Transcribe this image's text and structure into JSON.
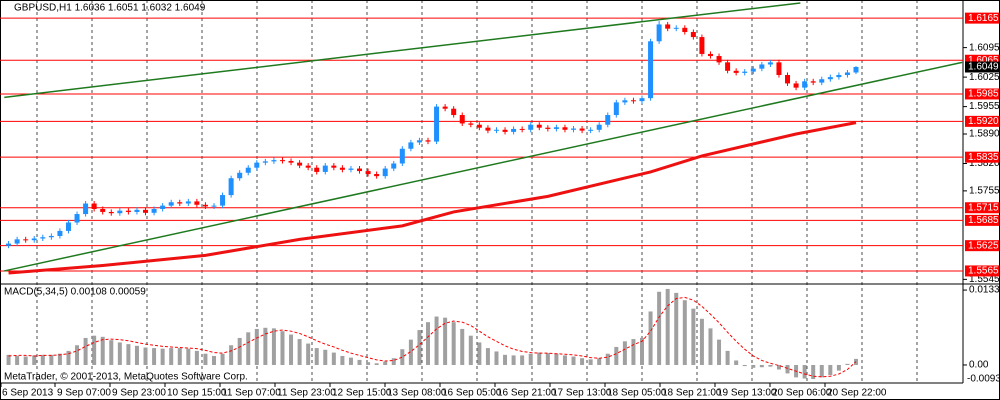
{
  "chart_data": {
    "type": "candlestick",
    "title": "GBPUSD,H1  1.6036 1.6051 1.6032 1.6049",
    "up_color": "#1e90ff",
    "down_color": "#ff0000",
    "xlim": [
      -1,
      111.5
    ],
    "ylim": [
      1.5534,
      1.6208
    ],
    "yticks": [
      1.6095,
      1.6025,
      1.5955,
      {
        "value": 1.589,
        "label": "1.5890"
      },
      {
        "value": 1.582,
        "label": "1.5820"
      },
      1.5755,
      1.5545
    ],
    "open": [
      1.5625,
      1.563,
      1.564,
      1.5638,
      1.5642,
      1.5645,
      1.5648,
      1.566,
      1.568,
      1.57,
      1.5725,
      1.5712,
      1.5705,
      1.5702,
      1.5708,
      1.5705,
      1.571,
      1.5703,
      1.5712,
      1.572,
      1.5728,
      1.5725,
      1.573,
      1.5722,
      1.5718,
      1.572,
      1.5745,
      1.5785,
      1.5798,
      1.581,
      1.5822,
      1.5825,
      1.5828,
      1.5826,
      1.5822,
      1.5815,
      1.581,
      1.58,
      1.5815,
      1.581,
      1.5805,
      1.5808,
      1.5802,
      1.5795,
      1.579,
      1.5808,
      1.582,
      1.5855,
      1.587,
      1.5875,
      1.5872,
      1.5955,
      1.595,
      1.5935,
      1.5915,
      1.5912,
      1.5905,
      1.5898,
      1.59,
      1.5895,
      1.5902,
      1.59,
      1.5912,
      1.5905,
      1.5902,
      1.5906,
      1.59,
      1.5903,
      1.5898,
      1.59,
      1.5912,
      1.5935,
      1.5965,
      1.597,
      1.5968,
      1.5975,
      1.611,
      1.615,
      1.614,
      1.6142,
      1.6132,
      1.612,
      1.608,
      1.6075,
      1.606,
      1.604,
      1.6035,
      1.6038,
      1.6045,
      1.6055,
      1.606,
      1.603,
      1.601,
      1.6,
      1.6015,
      1.6012,
      1.602,
      1.6025,
      1.603,
      1.6036
    ],
    "high": [
      1.5636,
      1.5646,
      1.5646,
      1.5648,
      1.5651,
      1.5654,
      1.5666,
      1.5686,
      1.5706,
      1.5731,
      1.5731,
      1.5718,
      1.5711,
      1.5714,
      1.5714,
      1.5716,
      1.5716,
      1.5718,
      1.5726,
      1.5734,
      1.5734,
      1.5736,
      1.5736,
      1.5728,
      1.5726,
      1.5751,
      1.5791,
      1.5804,
      1.5816,
      1.5828,
      1.5831,
      1.5834,
      1.5834,
      1.5832,
      1.5828,
      1.5821,
      1.5816,
      1.5821,
      1.5821,
      1.5816,
      1.5814,
      1.5814,
      1.5808,
      1.5801,
      1.5814,
      1.5826,
      1.5861,
      1.5876,
      1.5881,
      1.5881,
      1.5961,
      1.5961,
      1.5956,
      1.5941,
      1.5921,
      1.5918,
      1.5911,
      1.5906,
      1.5906,
      1.5908,
      1.5908,
      1.5918,
      1.5918,
      1.5911,
      1.5912,
      1.5912,
      1.5909,
      1.5909,
      1.5906,
      1.5918,
      1.5941,
      1.5971,
      1.5976,
      1.5976,
      1.5981,
      1.6116,
      1.6158,
      1.6156,
      1.6148,
      1.6148,
      1.6138,
      1.6126,
      1.6086,
      1.6081,
      1.6066,
      1.6046,
      1.6044,
      1.6051,
      1.6061,
      1.6066,
      1.6066,
      1.6036,
      1.6016,
      1.6021,
      1.6021,
      1.6026,
      1.6031,
      1.6036,
      1.6042,
      1.6051
    ],
    "low": [
      1.5619,
      1.5624,
      1.5632,
      1.5632,
      1.5636,
      1.5639,
      1.5642,
      1.5654,
      1.5674,
      1.5694,
      1.5706,
      1.5699,
      1.5696,
      1.5696,
      1.5699,
      1.5699,
      1.5697,
      1.5697,
      1.5706,
      1.5714,
      1.5719,
      1.5719,
      1.5716,
      1.5712,
      1.5712,
      1.5714,
      1.5739,
      1.5779,
      1.5792,
      1.5804,
      1.5816,
      1.5819,
      1.582,
      1.5816,
      1.5809,
      1.5804,
      1.5794,
      1.5794,
      1.5804,
      1.5799,
      1.5799,
      1.5796,
      1.5789,
      1.5784,
      1.5784,
      1.5802,
      1.5814,
      1.5849,
      1.5864,
      1.5866,
      1.5866,
      1.5944,
      1.5929,
      1.5909,
      1.5906,
      1.5899,
      1.5892,
      1.5892,
      1.5889,
      1.5889,
      1.5894,
      1.5894,
      1.5899,
      1.5896,
      1.5896,
      1.5894,
      1.5894,
      1.5892,
      1.5892,
      1.5894,
      1.5906,
      1.5929,
      1.5959,
      1.5962,
      1.5962,
      1.5969,
      1.6104,
      1.6134,
      1.6134,
      1.6126,
      1.6114,
      1.6074,
      1.6069,
      1.6054,
      1.6034,
      1.6029,
      1.6029,
      1.6032,
      1.6039,
      1.6049,
      1.6024,
      1.6004,
      1.5994,
      1.5994,
      1.6006,
      1.6006,
      1.6014,
      1.6019,
      1.6024,
      1.6032
    ],
    "close": [
      1.563,
      1.564,
      1.5638,
      1.5642,
      1.5645,
      1.5648,
      1.566,
      1.568,
      1.57,
      1.5725,
      1.5712,
      1.5705,
      1.5702,
      1.5708,
      1.5705,
      1.571,
      1.5703,
      1.5712,
      1.572,
      1.5728,
      1.5725,
      1.573,
      1.5722,
      1.5718,
      1.572,
      1.5745,
      1.5785,
      1.5798,
      1.581,
      1.5822,
      1.5825,
      1.5828,
      1.5826,
      1.5822,
      1.5815,
      1.581,
      1.58,
      1.5815,
      1.581,
      1.5805,
      1.5808,
      1.5802,
      1.5795,
      1.579,
      1.5808,
      1.582,
      1.5855,
      1.587,
      1.5875,
      1.5872,
      1.5955,
      1.595,
      1.5935,
      1.5915,
      1.5912,
      1.5905,
      1.5898,
      1.59,
      1.5895,
      1.5902,
      1.59,
      1.5912,
      1.5905,
      1.5902,
      1.5906,
      1.59,
      1.5903,
      1.5898,
      1.59,
      1.5912,
      1.5935,
      1.5965,
      1.597,
      1.5968,
      1.5975,
      1.611,
      1.615,
      1.614,
      1.6142,
      1.6132,
      1.612,
      1.608,
      1.6075,
      1.606,
      1.604,
      1.6035,
      1.6038,
      1.6045,
      1.6055,
      1.606,
      1.603,
      1.601,
      1.6,
      1.6015,
      1.6012,
      1.602,
      1.6025,
      1.603,
      1.6036,
      1.6049
    ],
    "levels": [
      1.6165,
      1.6065,
      1.5985,
      {
        "value": 1.592,
        "label": "1.5920"
      },
      1.5835,
      1.5715,
      1.5685,
      1.5625,
      1.5565
    ],
    "level_color": "#ff0000",
    "last_price": 1.6049,
    "ma": {
      "color": "#ee1111",
      "x": [
        0,
        11,
        23,
        34,
        46,
        52,
        63,
        75,
        81,
        92,
        99
      ],
      "values": [
        1.556,
        1.5578,
        1.5602,
        1.564,
        1.5672,
        1.5705,
        1.5742,
        1.58,
        1.5838,
        1.589,
        1.5917
      ]
    },
    "trend_color": "#1f7a1f",
    "trendlines": [
      {
        "x": [
          -0.5,
          92.5
        ],
        "y": [
          1.5977,
          1.6201
        ]
      },
      {
        "x": [
          -0.5,
          111.4
        ],
        "y": [
          1.5565,
          1.606
        ]
      }
    ],
    "xlabels": [
      "6 Sep 2013",
      "9 Sep 07:00",
      "9 Sep 23:00",
      "10 Sep 15:00",
      "11 Sep 07:00",
      "11 Sep 23:00",
      "12 Sep 15:00",
      "13 Sep 08:00",
      "16 Sep 05:00",
      "16 Sep 21:00",
      "17 Sep 13:00",
      "18 Sep 05:00",
      "18 Sep 21:00",
      "19 Sep 13:00",
      "20 Sep 06:00",
      "20 Sep 22:00"
    ],
    "copyright": "MetaTrader, © 2001-2013, MetaQuotes Software Corp.",
    "macd": {
      "title": "MACD(5,34,5) 0.00108 0.00059",
      "bar_color": "#a0a0a0",
      "signal_color": "#ff0000",
      "ylim": [
        -0.0032,
        0.0142
      ],
      "yticks": [
        0.0133,
        {
          "value": 0,
          "label": "0.00"
        }
      ],
      "min_label": -0.0093,
      "values": [
        0.0018,
        0.0016,
        0.0015,
        0.0017,
        0.0018,
        0.0018,
        0.002,
        0.0025,
        0.0035,
        0.0048,
        0.0052,
        0.005,
        0.0044,
        0.004,
        0.0037,
        0.0034,
        0.0031,
        0.003,
        0.0029,
        0.003,
        0.003,
        0.0029,
        0.0025,
        0.002,
        0.0016,
        0.002,
        0.0035,
        0.0048,
        0.0058,
        0.0064,
        0.0066,
        0.0065,
        0.006,
        0.0054,
        0.0046,
        0.0038,
        0.003,
        0.0027,
        0.0022,
        0.0016,
        0.0013,
        0.0009,
        0.0005,
        0.0003,
        0.0006,
        0.0012,
        0.0028,
        0.0045,
        0.0062,
        0.0076,
        0.0086,
        0.0084,
        0.0076,
        0.0064,
        0.0052,
        0.004,
        0.003,
        0.0024,
        0.0018,
        0.0017,
        0.0017,
        0.002,
        0.0022,
        0.0021,
        0.002,
        0.0017,
        0.0015,
        0.0012,
        0.001,
        0.0012,
        0.002,
        0.0032,
        0.0042,
        0.0046,
        0.0048,
        0.0095,
        0.013,
        0.0135,
        0.0128,
        0.0115,
        0.01,
        0.0082,
        0.0065,
        0.0045,
        0.0025,
        0.0008,
        -0.0002,
        -0.0005,
        -0.0004,
        -0.0003,
        -0.0008,
        -0.0015,
        -0.0022,
        -0.0024,
        -0.0025,
        -0.0022,
        -0.0018,
        -0.001,
        0.0002,
        0.00108
      ],
      "signal": [
        0.0016,
        0.0017,
        0.0017,
        0.0016,
        0.0017,
        0.0017,
        0.0018,
        0.002,
        0.0025,
        0.0033,
        0.004,
        0.0045,
        0.0046,
        0.0045,
        0.0043,
        0.004,
        0.0037,
        0.0035,
        0.0033,
        0.0032,
        0.0031,
        0.003,
        0.0029,
        0.0026,
        0.0022,
        0.0021,
        0.0025,
        0.0032,
        0.004,
        0.0048,
        0.0055,
        0.006,
        0.0062,
        0.006,
        0.0056,
        0.005,
        0.0043,
        0.0037,
        0.0032,
        0.0026,
        0.0021,
        0.0017,
        0.0013,
        0.0009,
        0.0007,
        0.0008,
        0.0014,
        0.0024,
        0.0036,
        0.005,
        0.0064,
        0.0074,
        0.0078,
        0.0076,
        0.007,
        0.006,
        0.005,
        0.0042,
        0.0034,
        0.0028,
        0.0024,
        0.0022,
        0.0021,
        0.0021,
        0.002,
        0.0019,
        0.0018,
        0.0016,
        0.0013,
        0.0012,
        0.0014,
        0.002,
        0.0028,
        0.0036,
        0.0042,
        0.006,
        0.0085,
        0.0105,
        0.0118,
        0.012,
        0.0115,
        0.0104,
        0.009,
        0.0075,
        0.0058,
        0.0042,
        0.0028,
        0.0016,
        0.0008,
        0.0003,
        -0.0001,
        -0.0006,
        -0.0011,
        -0.0016,
        -0.002,
        -0.0021,
        -0.002,
        -0.0016,
        -0.0008,
        0.00059
      ]
    }
  }
}
